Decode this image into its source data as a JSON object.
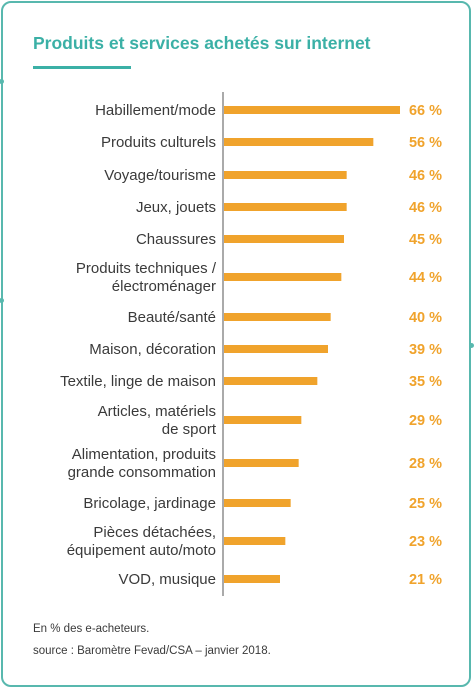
{
  "title": "Produits et services achetés sur internet",
  "footnote": "En % des e-acheteurs.",
  "source": "source : Baromètre Fevad/CSA – janvier 2018.",
  "colors": {
    "accent": "#3bb0a6",
    "bar": "#f0a32c",
    "value_text": "#f0a32c",
    "axis": "#555555"
  },
  "chart_data": {
    "type": "bar",
    "orientation": "horizontal",
    "categories": [
      "Habillement/mode",
      "Produits culturels",
      "Voyage/tourisme",
      "Jeux, jouets",
      "Chaussures",
      "Produits techniques /\nélectroménager",
      "Beauté/santé",
      "Maison, décoration",
      "Textile, linge de maison",
      "Articles, matériels\nde sport",
      "Alimentation, produits\ngrande consommation",
      "Bricolage, jardinage",
      "Pièces détachées,\néquipement auto/moto",
      "VOD, musique"
    ],
    "values": [
      66,
      56,
      46,
      46,
      45,
      44,
      40,
      39,
      35,
      29,
      28,
      25,
      23,
      21
    ],
    "value_labels": [
      "66 %",
      "56 %",
      "46 %",
      "46 %",
      "45 %",
      "44 %",
      "40 %",
      "39 %",
      "35 %",
      "29 %",
      "28 %",
      "25 %",
      "23 %",
      "21 %"
    ],
    "xlim": [
      0,
      66
    ],
    "unit": "%",
    "grid": false,
    "legend": "none"
  }
}
